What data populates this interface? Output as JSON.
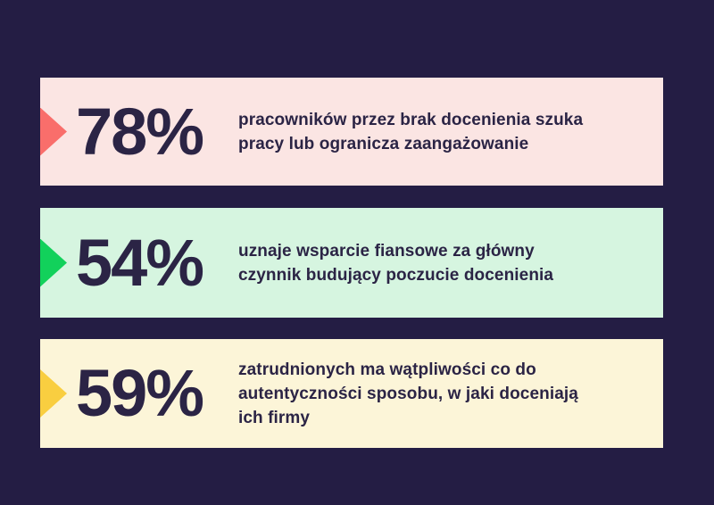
{
  "colors": {
    "background": "#241D44",
    "text": "#2B2445"
  },
  "chart_data": {
    "type": "bar",
    "title": "",
    "unit": "%",
    "values": [
      78,
      54,
      59
    ],
    "categories": [
      "pracowników przez brak docenienia szuka pracy lub ogranicza zaangażowanie",
      "uznaje wsparcie fiansowe za główny czynnik budujący poczucie docenienia",
      "zatrudnionych ma wątpliwości co do autentyczności sposobu, w jaki doceniają ich firmy"
    ],
    "legend": false,
    "axes": false
  },
  "stats": [
    {
      "value": "78%",
      "description": "pracowników przez brak docenienia szuka\npracy lub ogranicza zaangażowanie",
      "bar_color": "#FBE5E3",
      "arrow_color": "#F96E6B"
    },
    {
      "value": "54%",
      "description": "uznaje wsparcie fiansowe za główny\nczynnik budujący poczucie docenienia",
      "bar_color": "#D6F5E0",
      "arrow_color": "#12D15B"
    },
    {
      "value": "59%",
      "description": "zatrudnionych ma wątpliwości co do\nautentyczności sposobu, w jaki doceniają\nich firmy",
      "bar_color": "#FCF5D8",
      "arrow_color": "#F9CE40"
    }
  ]
}
